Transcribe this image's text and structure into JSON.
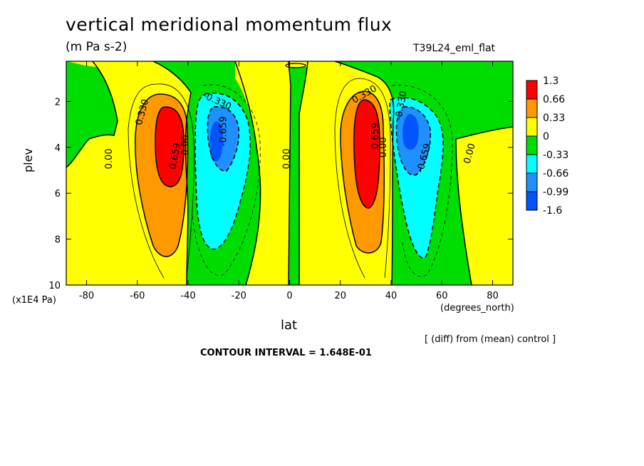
{
  "header": {
    "title": "vertical meridional momentum flux",
    "units": "(m Pa s-2)",
    "run_id": "T39L24_eml_flat"
  },
  "footer": {
    "note": "[ (diff) from (mean) control ]",
    "contour_interval": "CONTOUR INTERVAL = 1.648E-01"
  },
  "chart_data": {
    "type": "heatmap",
    "title": "vertical meridional momentum flux",
    "xlabel": "lat",
    "x_units": "(degrees_north)",
    "ylabel": "plev",
    "y_units": "(x1E4 Pa)",
    "xlim": [
      -88,
      88
    ],
    "ylim": [
      10,
      0.25
    ],
    "x_ticks": [
      -80,
      -60,
      -40,
      -20,
      0,
      20,
      40,
      60,
      80
    ],
    "y_ticks": [
      2,
      4,
      6,
      8,
      10
    ],
    "colorbar": {
      "labels": [
        "1.3",
        "0.66",
        "0.33",
        "0",
        "-0.33",
        "-0.66",
        "-0.99",
        "-1.6"
      ],
      "colors": [
        "#ff0000",
        "#ff9900",
        "#ffff00",
        "#00dd00",
        "#00ffff",
        "#1e90ff",
        "#0055ff"
      ]
    },
    "contour_labels": [
      {
        "text": "0.330",
        "lat": -57,
        "plev": 2.5,
        "angle": -75
      },
      {
        "text": "0.659",
        "lat": -44,
        "plev": 4.4,
        "angle": -80
      },
      {
        "text": "0.00",
        "lat": -40,
        "plev": 3.9,
        "angle": -90
      },
      {
        "text": "-0.330",
        "lat": -29,
        "plev": 2.1,
        "angle": 25
      },
      {
        "text": "-0.659",
        "lat": -25,
        "plev": 3.3,
        "angle": -90
      },
      {
        "text": "0.00",
        "lat": -70,
        "plev": 4.5,
        "angle": -90
      },
      {
        "text": "0.00",
        "lat": 0,
        "plev": 4.5,
        "angle": -90
      },
      {
        "text": "0.330",
        "lat": 30,
        "plev": 1.8,
        "angle": -30
      },
      {
        "text": "0.659",
        "lat": 35,
        "plev": 3.5,
        "angle": -90
      },
      {
        "text": "0.00",
        "lat": 38,
        "plev": 4.0,
        "angle": -90
      },
      {
        "text": "-0.330",
        "lat": 45,
        "plev": 2.2,
        "angle": -80
      },
      {
        "text": "-0.659",
        "lat": 54,
        "plev": 4.5,
        "angle": -75
      },
      {
        "text": "0.00",
        "lat": 72,
        "plev": 4.3,
        "angle": -75
      }
    ]
  }
}
